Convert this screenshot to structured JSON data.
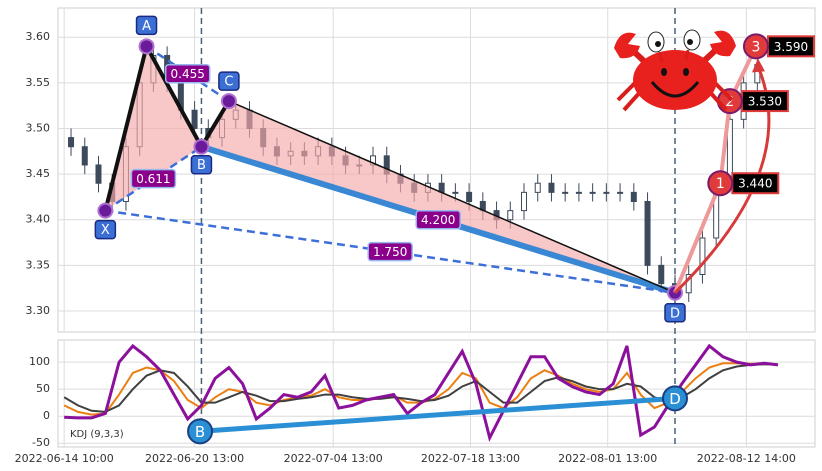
{
  "chart_data": [
    {
      "type": "candlestick",
      "x": [
        0.5,
        1.5,
        2.5,
        3.5,
        4.5,
        5.5,
        6.5,
        7.5,
        8.5,
        9.5,
        10.5,
        11.5,
        12.5,
        13.5,
        14.5,
        15.5,
        16.5,
        17.5,
        18.5,
        19.5,
        20.5,
        21.5,
        22.5,
        23.5,
        24.5,
        25.5,
        26.5,
        27.5,
        28.5,
        29.5,
        30.5,
        31.5,
        32.5,
        33.5,
        34.5,
        35.5,
        36.5,
        37.5,
        38.5,
        39.5,
        40.5,
        41.5,
        42.5,
        43.5,
        44.5,
        45.5,
        46.5,
        47.5,
        48.5,
        49.5,
        50.5
      ],
      "open": [
        3.49,
        3.48,
        3.46,
        3.44,
        3.42,
        3.48,
        3.55,
        3.58,
        3.55,
        3.52,
        3.5,
        3.49,
        3.51,
        3.52,
        3.5,
        3.48,
        3.47,
        3.475,
        3.47,
        3.48,
        3.47,
        3.46,
        3.46,
        3.47,
        3.45,
        3.44,
        3.43,
        3.44,
        3.43,
        3.43,
        3.42,
        3.41,
        3.4,
        3.41,
        3.43,
        3.44,
        3.43,
        3.43,
        3.43,
        3.43,
        3.43,
        3.43,
        3.42,
        3.35,
        3.33,
        3.32,
        3.34,
        3.38,
        3.44,
        3.51,
        3.55
      ],
      "high": [
        3.5,
        3.49,
        3.47,
        3.45,
        3.49,
        3.56,
        3.59,
        3.59,
        3.56,
        3.53,
        3.51,
        3.52,
        3.53,
        3.53,
        3.51,
        3.49,
        3.485,
        3.485,
        3.49,
        3.49,
        3.48,
        3.47,
        3.48,
        3.48,
        3.46,
        3.45,
        3.45,
        3.45,
        3.44,
        3.44,
        3.43,
        3.42,
        3.42,
        3.44,
        3.45,
        3.45,
        3.44,
        3.44,
        3.44,
        3.44,
        3.44,
        3.44,
        3.43,
        3.36,
        3.34,
        3.35,
        3.39,
        3.45,
        3.52,
        3.56,
        3.58
      ],
      "low": [
        3.47,
        3.45,
        3.43,
        3.41,
        3.41,
        3.47,
        3.54,
        3.54,
        3.51,
        3.49,
        3.48,
        3.48,
        3.5,
        3.49,
        3.47,
        3.46,
        3.46,
        3.46,
        3.46,
        3.46,
        3.45,
        3.45,
        3.45,
        3.44,
        3.43,
        3.42,
        3.42,
        3.42,
        3.42,
        3.41,
        3.4,
        3.39,
        3.39,
        3.4,
        3.42,
        3.42,
        3.42,
        3.42,
        3.42,
        3.42,
        3.42,
        3.41,
        3.34,
        3.32,
        3.31,
        3.31,
        3.33,
        3.37,
        3.43,
        3.5,
        3.54
      ],
      "close": [
        3.48,
        3.46,
        3.44,
        3.42,
        3.48,
        3.55,
        3.58,
        3.55,
        3.52,
        3.5,
        3.49,
        3.51,
        3.52,
        3.5,
        3.48,
        3.47,
        3.475,
        3.47,
        3.48,
        3.47,
        3.46,
        3.46,
        3.47,
        3.45,
        3.44,
        3.43,
        3.44,
        3.43,
        3.43,
        3.42,
        3.41,
        3.4,
        3.41,
        3.43,
        3.44,
        3.43,
        3.43,
        3.43,
        3.43,
        3.43,
        3.43,
        3.42,
        3.35,
        3.33,
        3.32,
        3.34,
        3.38,
        3.44,
        3.51,
        3.55,
        3.57
      ],
      "up_color": "#ffffff",
      "down_color": "#3d4a5c",
      "xlim": [
        -0.45,
        54.7
      ],
      "ylim": [
        3.277,
        3.632
      ],
      "yticks": [
        {
          "value": 3.3,
          "label": "3.30"
        },
        3.35,
        {
          "value": 3.4,
          "label": "3.40"
        },
        3.45,
        {
          "value": 3.5,
          "label": "3.50"
        },
        3.55,
        {
          "value": 3.6,
          "label": "3.60"
        }
      ],
      "grid": true,
      "pattern": {
        "labels": [
          "X",
          "A",
          "B",
          "C",
          "D"
        ],
        "x": [
          3,
          6,
          10,
          12,
          44.5
        ],
        "values": [
          3.41,
          3.59,
          3.48,
          3.53,
          3.32
        ]
      },
      "ratios": {
        "values": [
          0.455,
          0.611,
          4.2,
          1.75
        ],
        "value_labels": [
          "0.455",
          "0.611",
          "4.200",
          "1.750"
        ]
      },
      "targets": {
        "labels": [
          "1",
          "2",
          "3"
        ],
        "x": [
          47.8,
          48.5,
          50.4
        ],
        "values": [
          3.44,
          3.53,
          3.59
        ],
        "value_labels": [
          "3.440",
          "3.530",
          "3.590"
        ]
      }
    },
    {
      "type": "line",
      "label": "KDJ (9,3,3)",
      "x": [
        0,
        1,
        2,
        3,
        4,
        5,
        6,
        7,
        8,
        9,
        10,
        11,
        12,
        13,
        14,
        15,
        16,
        17,
        18,
        19,
        20,
        21,
        22,
        23,
        24,
        25,
        26,
        27,
        28,
        29,
        30,
        31,
        32,
        33,
        34,
        35,
        36,
        37,
        38,
        39,
        40,
        41,
        42,
        43,
        44,
        45,
        46,
        47,
        48,
        49,
        50,
        51,
        52
      ],
      "series": [
        {
          "color": "#ec7f12",
          "values": [
            20,
            8,
            3,
            5,
            40,
            80,
            90,
            85,
            65,
            30,
            15,
            35,
            50,
            45,
            25,
            20,
            30,
            35,
            38,
            50,
            35,
            30,
            30,
            33,
            38,
            25,
            25,
            32,
            50,
            80,
            70,
            25,
            15,
            35,
            70,
            85,
            75,
            60,
            50,
            45,
            50,
            80,
            40,
            15,
            25,
            45,
            70,
            90,
            98,
            98,
            97,
            97,
            96
          ]
        },
        {
          "color": "#404040",
          "values": [
            35,
            20,
            10,
            8,
            20,
            50,
            75,
            85,
            80,
            55,
            25,
            25,
            35,
            45,
            38,
            28,
            28,
            32,
            35,
            40,
            40,
            35,
            32,
            32,
            35,
            32,
            28,
            30,
            38,
            55,
            65,
            45,
            25,
            25,
            45,
            65,
            72,
            65,
            55,
            50,
            50,
            60,
            55,
            35,
            28,
            35,
            50,
            70,
            85,
            92,
            95,
            96,
            96
          ]
        },
        {
          "color": "#8b109b",
          "values": [
            -2,
            -3,
            -3,
            5,
            100,
            130,
            110,
            85,
            40,
            -5,
            20,
            70,
            90,
            60,
            -5,
            15,
            40,
            35,
            45,
            75,
            15,
            20,
            30,
            35,
            40,
            5,
            25,
            40,
            80,
            120,
            60,
            -40,
            10,
            60,
            110,
            110,
            70,
            55,
            45,
            40,
            60,
            130,
            -35,
            -20,
            20,
            60,
            95,
            130,
            110,
            100,
            95,
            98,
            95
          ]
        }
      ],
      "xlim": [
        -0.45,
        54.7
      ],
      "ylim": [
        -57,
        141
      ],
      "yticks": [
        -50,
        0,
        50,
        100
      ],
      "xticks": [
        {
          "value": 0,
          "label": "2022-06-14 10:00"
        },
        {
          "value": 9.5,
          "label": "2022-06-20 13:00"
        },
        {
          "value": 19.6,
          "label": "2022-07-04 13:00"
        },
        {
          "value": 29.6,
          "label": "2022-07-18 13:00"
        },
        {
          "value": 39.6,
          "label": "2022-08-01 13:00"
        },
        {
          "value": 49.7,
          "label": "2022-08-12 14:00"
        }
      ],
      "grid": true,
      "divergence": {
        "labels": [
          "B",
          "D"
        ],
        "x": [
          9.9,
          44.5
        ],
        "values": [
          -28,
          33
        ]
      }
    }
  ]
}
